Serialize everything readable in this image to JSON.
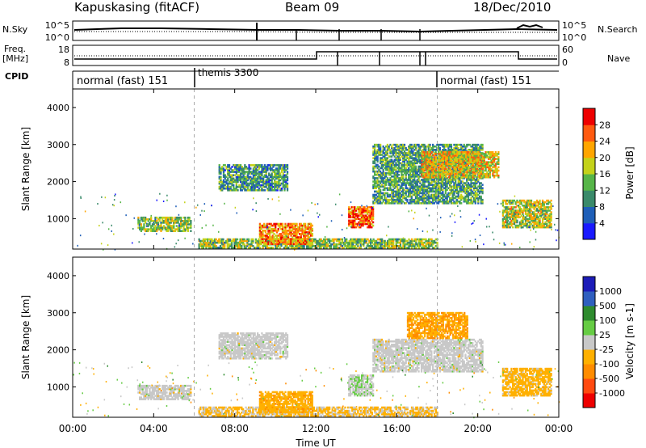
{
  "header": {
    "radar": "Kapuskasing (fitACF)",
    "beam": "Beam 09",
    "date": "18/Dec/2010"
  },
  "meta_panels": {
    "nsky_label": "N.Sky",
    "nsearch_label": "N.Search",
    "nsky_ticks": [
      "10^5",
      "10^0"
    ],
    "freq_label_top": "Freq.",
    "freq_label_unit": "[MHz]",
    "freq_ticks": [
      "18",
      "8"
    ],
    "nave_label": "Nave",
    "nave_ticks": [
      "60",
      "0"
    ],
    "cpid_label": "CPID",
    "cpid_segments": [
      {
        "label": "normal (fast) 151",
        "start": 0,
        "end": 6
      },
      {
        "label": "themis 3300",
        "start": 6,
        "end": 18
      },
      {
        "label": "normal (fast) 151",
        "start": 18,
        "end": 24
      }
    ]
  },
  "chart_data": [
    {
      "type": "heatmap",
      "title": "",
      "xlabel": "Time UT",
      "ylabel": "Slant Range [km]",
      "xlim": [
        0,
        24
      ],
      "ylim": [
        180,
        4500
      ],
      "x_ticks": [
        "00:00",
        "04:00",
        "08:00",
        "12:00",
        "16:00",
        "20:00",
        "00:00"
      ],
      "y_ticks": [
        "1000",
        "2000",
        "3000",
        "4000"
      ],
      "colorbar": {
        "label": "Power [dB]",
        "ticks": [
          "4",
          "8",
          "12",
          "16",
          "20",
          "24",
          "28"
        ],
        "range": [
          0,
          30
        ],
        "colors": [
          "#1a1aff",
          "#1f5fb8",
          "#3a8a6a",
          "#56b548",
          "#c4d21a",
          "#ffa500",
          "#ff5a10",
          "#ee0000"
        ]
      },
      "clusters": [
        {
          "t0": 3.2,
          "t1": 5.8,
          "r0": 650,
          "r1": 1050,
          "level": 14
        },
        {
          "t0": 6.2,
          "t1": 18.0,
          "r0": 200,
          "r1": 450,
          "level": 14
        },
        {
          "t0": 7.2,
          "t1": 10.6,
          "r0": 1750,
          "r1": 2450,
          "level": 10
        },
        {
          "t0": 9.2,
          "t1": 11.8,
          "r0": 300,
          "r1": 850,
          "level": 22
        },
        {
          "t0": 13.6,
          "t1": 14.8,
          "r0": 750,
          "r1": 1300,
          "level": 24
        },
        {
          "t0": 14.8,
          "t1": 20.2,
          "r0": 1400,
          "r1": 3000,
          "level": 11
        },
        {
          "t0": 17.2,
          "t1": 21.0,
          "r0": 2100,
          "r1": 2800,
          "level": 19
        },
        {
          "t0": 21.2,
          "t1": 23.6,
          "r0": 750,
          "r1": 1500,
          "level": 16
        }
      ]
    },
    {
      "type": "heatmap",
      "title": "",
      "xlabel": "Time UT",
      "ylabel": "Slant Range [km]",
      "xlim": [
        0,
        24
      ],
      "ylim": [
        180,
        4500
      ],
      "x_ticks": [
        "00:00",
        "04:00",
        "08:00",
        "12:00",
        "16:00",
        "20:00",
        "00:00"
      ],
      "y_ticks": [
        "1000",
        "2000",
        "3000",
        "4000"
      ],
      "colorbar": {
        "label": "Velocity [m s-1]",
        "ticks": [
          "1000",
          "500",
          "100",
          "25",
          "-25",
          "-100",
          "-500",
          "-1000"
        ],
        "range": [
          -1000,
          1000
        ],
        "colors": [
          "#ee0000",
          "#ff4a10",
          "#ff8c00",
          "#ffb000",
          "#c8c8c8",
          "#66cc44",
          "#2e8b2e",
          "#2f5fbf",
          "#1c1cb8"
        ]
      },
      "clusters": [
        {
          "t0": 3.2,
          "t1": 5.8,
          "r0": 650,
          "r1": 1050,
          "level": 0
        },
        {
          "t0": 6.2,
          "t1": 18.0,
          "r0": 200,
          "r1": 450,
          "level": -150
        },
        {
          "t0": 7.2,
          "t1": 10.6,
          "r0": 1750,
          "r1": 2450,
          "level": 0
        },
        {
          "t0": 9.2,
          "t1": 11.8,
          "r0": 300,
          "r1": 850,
          "level": -250
        },
        {
          "t0": 13.6,
          "t1": 14.8,
          "r0": 750,
          "r1": 1300,
          "level": 60
        },
        {
          "t0": 14.8,
          "t1": 20.2,
          "r0": 1400,
          "r1": 2300,
          "level": 0
        },
        {
          "t0": 16.5,
          "t1": 19.5,
          "r0": 2300,
          "r1": 3000,
          "level": -300
        },
        {
          "t0": 21.2,
          "t1": 23.6,
          "r0": 750,
          "r1": 1500,
          "level": -200
        }
      ]
    }
  ]
}
